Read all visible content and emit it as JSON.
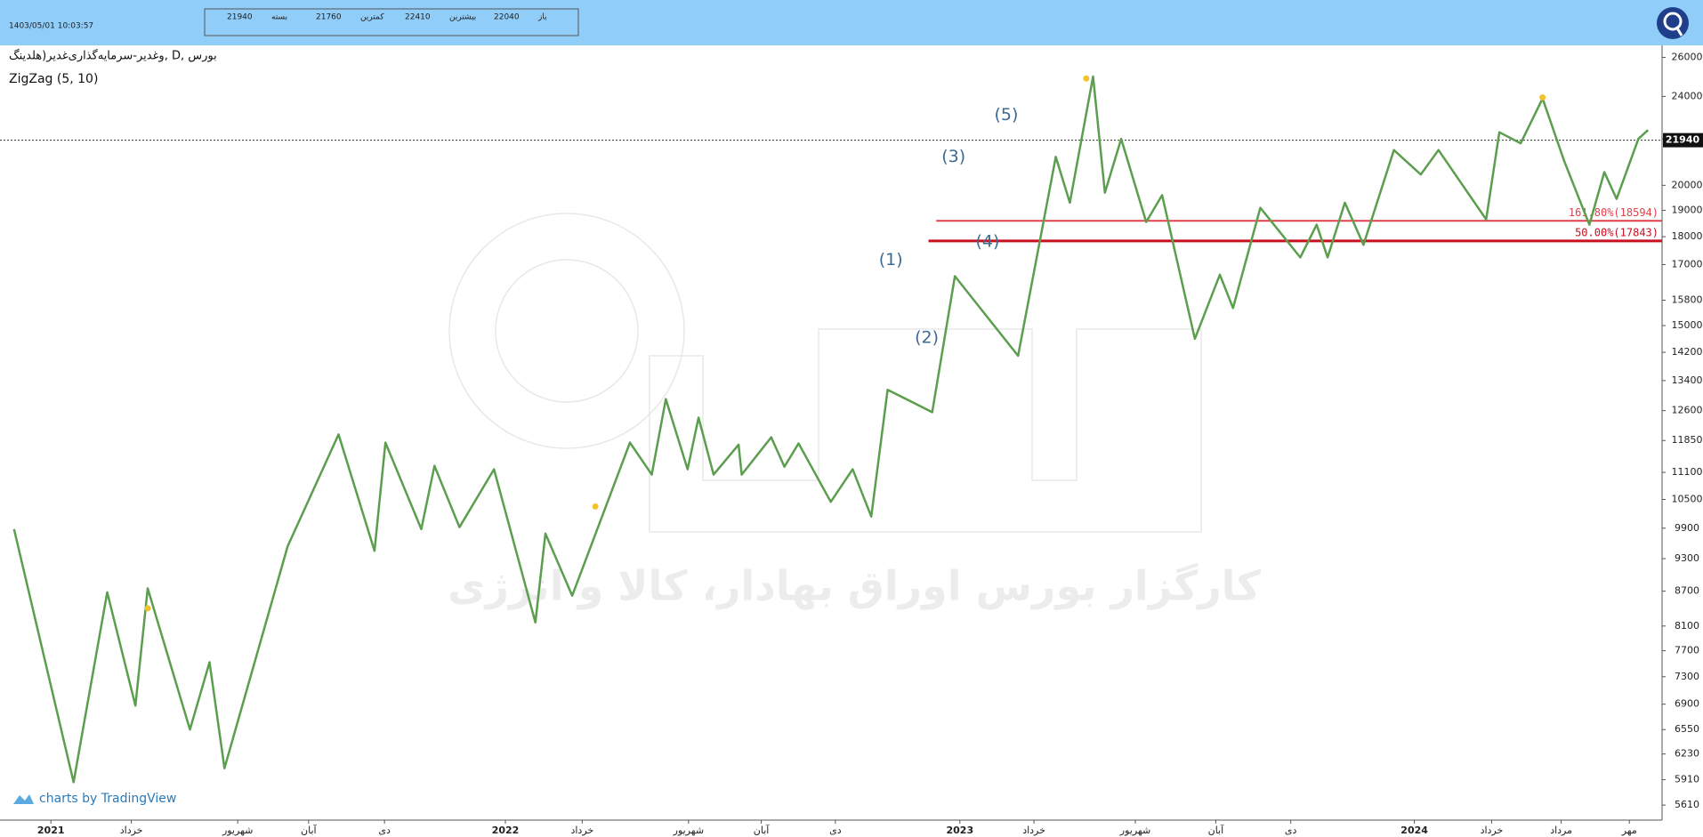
{
  "header": {
    "datetime": "1403/05/01 10:03:57",
    "ohlc": [
      {
        "label": "بسته",
        "value": 21940
      },
      {
        "label": "کمترین",
        "value": 21760
      },
      {
        "label": "بیشترین",
        "value": 22410
      },
      {
        "label": "باز",
        "value": 22040
      }
    ]
  },
  "chart_data": {
    "type": "line",
    "title": "وغدیر-سرمایه‌گذاری‌غدیر(هلدینگ, D, بورس",
    "watermark": "کارگزار بورس اوراق بهادار، کالا و انرژی",
    "credit": "charts by TradingView",
    "x": [
      2020.919,
      2021.05,
      2021.124,
      2021.186,
      2021.213,
      2021.306,
      2021.349,
      2021.382,
      2021.521,
      2021.633,
      2021.712,
      2021.736,
      2021.815,
      2021.844,
      2021.899,
      2021.975,
      2022.066,
      2022.088,
      2022.147,
      2022.274,
      2022.322,
      2022.353,
      2022.401,
      2022.425,
      2022.458,
      2022.513,
      2022.52,
      2022.585,
      2022.614,
      2022.645,
      2022.716,
      2022.764,
      2022.805,
      2022.841,
      2022.939,
      2022.989,
      2023.128,
      2023.211,
      2023.242,
      2023.293,
      2023.319,
      2023.355,
      2023.41,
      2023.445,
      2023.517,
      2023.572,
      2023.601,
      2023.661,
      2023.749,
      2023.785,
      2023.809,
      2023.847,
      2023.888,
      2023.955,
      2024.014,
      2024.053,
      2024.158,
      2024.187,
      2024.234,
      2024.282,
      2024.33,
      2024.385,
      2024.418,
      2024.445,
      2024.493,
      2024.514
    ],
    "series": [
      {
        "name": "ZigZag (5, 10)",
        "color": "#5a9e4e",
        "values": [
          9880,
          5880,
          8680,
          6880,
          8750,
          6550,
          7520,
          6050,
          9540,
          12000,
          9450,
          11800,
          9880,
          11250,
          9920,
          11170,
          8160,
          9790,
          8620,
          11800,
          11050,
          12900,
          11170,
          12420,
          11050,
          11750,
          11050,
          11930,
          11230,
          11780,
          10450,
          11170,
          10140,
          13150,
          12560,
          16600,
          14100,
          21200,
          19300,
          25000,
          19700,
          22000,
          18550,
          19600,
          14600,
          16650,
          15550,
          19100,
          17250,
          18450,
          17250,
          19300,
          17700,
          21500,
          20450,
          21500,
          18650,
          22300,
          21800,
          23900,
          21000,
          18450,
          20550,
          19450,
          22000,
          22400
        ]
      }
    ],
    "xlim": [
      2020.888,
      2024.545
    ],
    "ylim": [
      5440,
      26650
    ],
    "log_scale": "y",
    "xticks": [
      2021,
      {
        "value": 2021.177,
        "label": "خرداد"
      },
      {
        "value": 2021.411,
        "label": "شهریور"
      },
      {
        "value": 2021.567,
        "label": "آبان"
      },
      {
        "value": 2021.734,
        "label": "دی"
      },
      2022,
      {
        "value": 2022.169,
        "label": "خرداد"
      },
      {
        "value": 2022.403,
        "label": "شهریور"
      },
      {
        "value": 2022.563,
        "label": "آبان"
      },
      {
        "value": 2022.726,
        "label": "دی"
      },
      2023,
      {
        "value": 2023.163,
        "label": "خرداد"
      },
      {
        "value": 2023.386,
        "label": "شهریور"
      },
      {
        "value": 2023.563,
        "label": "آبان"
      },
      {
        "value": 2023.728,
        "label": "دی"
      },
      2024,
      {
        "value": 2024.17,
        "label": "خرداد"
      },
      {
        "value": 2024.323,
        "label": "مرداد"
      },
      {
        "value": 2024.473,
        "label": "مهر"
      }
    ],
    "yticks": [
      26000,
      24000,
      22000,
      20000,
      19000,
      18000,
      17000,
      15800,
      15000,
      14200,
      13400,
      12600,
      11850,
      11100,
      10500,
      9900,
      9300,
      8700,
      8100,
      7700,
      7300,
      6900,
      6550,
      6230,
      5910,
      5610
    ],
    "last_price": 21940,
    "hlines": [
      {
        "value": 18594,
        "label": "161.80%(18594)",
        "x_start": 2022.948,
        "color": "#e0404a"
      },
      {
        "value": 17843,
        "label": "50.00%(17843)",
        "x_start": 2022.931,
        "color": "#c8101e"
      }
    ],
    "annotations": [
      {
        "text": "(1)",
        "x": 2022.848,
        "y": 17150
      },
      {
        "text": "(2)",
        "x": 2022.927,
        "y": 14620
      },
      {
        "text": "(3)",
        "x": 2022.986,
        "y": 21200
      },
      {
        "text": "(4)",
        "x": 2023.061,
        "y": 17800
      },
      {
        "text": "(5)",
        "x": 2023.102,
        "y": 23100
      }
    ],
    "markers": [
      {
        "x": 2021.213,
        "y": 8400
      },
      {
        "x": 2022.198,
        "y": 10350
      },
      {
        "x": 2023.278,
        "y": 24900
      },
      {
        "x": 2024.282,
        "y": 23950
      }
    ]
  }
}
